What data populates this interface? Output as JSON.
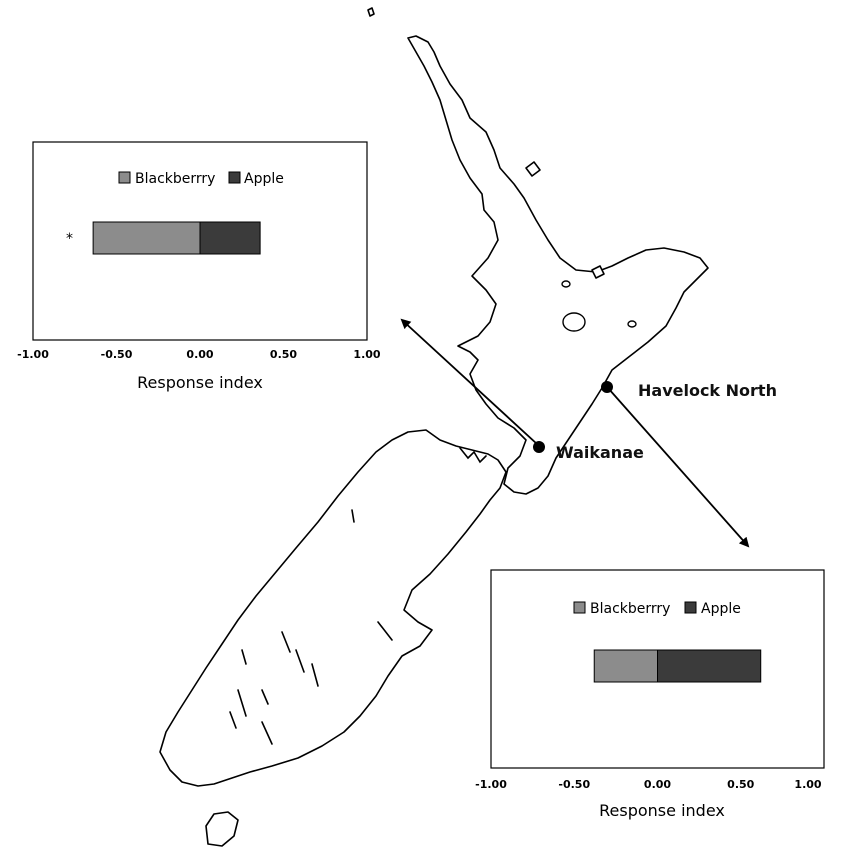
{
  "sites": [
    {
      "name": "Havelock North"
    },
    {
      "name": "Waikanae"
    }
  ],
  "colors": {
    "blackberry": "#8c8c8c",
    "apple": "#3b3b3b"
  },
  "chart_data": [
    {
      "type": "bar",
      "orientation": "horizontal",
      "stacked": true,
      "site": "Waikanae",
      "legend": [
        "Blackberrry",
        "Apple"
      ],
      "legend_position": "top",
      "series": [
        {
          "name": "Blackberrry",
          "values": [
            -0.64
          ]
        },
        {
          "name": "Apple",
          "values": [
            0.36
          ]
        }
      ],
      "annotation": "*",
      "xlabel": "Response index",
      "xlim": [
        -1.0,
        1.0
      ],
      "xticks": [
        "-1.00",
        "-0.50",
        "0.00",
        "0.50",
        "1.00"
      ],
      "grid": false
    },
    {
      "type": "bar",
      "orientation": "horizontal",
      "stacked": true,
      "site": "Havelock North",
      "legend": [
        "Blackberrry",
        "Apple"
      ],
      "legend_position": "top",
      "series": [
        {
          "name": "Blackberrry",
          "values": [
            -0.38
          ]
        },
        {
          "name": "Apple",
          "values": [
            0.62
          ]
        }
      ],
      "annotation": "",
      "xlabel": "Response index",
      "xlim": [
        -1.0,
        1.0
      ],
      "xticks": [
        "-1.00",
        "-0.50",
        "0.00",
        "0.50",
        "1.00"
      ],
      "grid": false
    }
  ]
}
